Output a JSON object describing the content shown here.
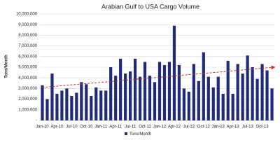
{
  "chart_data": {
    "type": "bar",
    "title": "Arabian Gulf to USA Cargo Volume",
    "y_label": "Tons/Month",
    "categories": [
      "Jan-10",
      null,
      null,
      "Apr-10",
      null,
      null,
      "Jul-10",
      null,
      null,
      "Oct-10",
      null,
      null,
      "Jan-11",
      null,
      null,
      "Apr-11",
      null,
      null,
      "Jul-11",
      null,
      null,
      "Oct-11",
      null,
      null,
      "Jan-12",
      null,
      null,
      "Apr-12",
      null,
      null,
      "Jul-12",
      null,
      null,
      "Oct-12",
      null,
      null,
      "Jan-13",
      null,
      null,
      "Apr-13",
      null,
      null,
      "Jul-13",
      null,
      null,
      "Oct-13",
      null,
      null
    ],
    "series": [
      {
        "name": "Tons/Month",
        "color": "#1f2a7a",
        "values": [
          3300000,
          2000000,
          4400000,
          2500000,
          2800000,
          3000000,
          2300000,
          2600000,
          3600000,
          3400000,
          2300000,
          3100000,
          2800000,
          2800000,
          5000000,
          4200000,
          5800000,
          4400000,
          4600000,
          5800000,
          4100000,
          5500000,
          4200000,
          3600000,
          5500000,
          5200000,
          5500000,
          8900000,
          5200000,
          3000000,
          2700000,
          5300000,
          3700000,
          6400000,
          4100000,
          3100000,
          4100000,
          2500000,
          5600000,
          2500000,
          5300000,
          4400000,
          6100000,
          5000000,
          3900000,
          5300000,
          4700000,
          3000000
        ]
      }
    ],
    "trend": {
      "start": 3100000,
      "end": 5000000,
      "color": "#c0392b"
    },
    "ylim": [
      0,
      10000000
    ],
    "yticks": [
      {
        "value": 0,
        "label": "-"
      },
      {
        "value": 1000000,
        "label": "1,000,000"
      },
      {
        "value": 2000000,
        "label": "2,000,000"
      },
      {
        "value": 3000000,
        "label": "3,000,000"
      },
      {
        "value": 4000000,
        "label": "4,000,000"
      },
      {
        "value": 5000000,
        "label": "5,000,000"
      },
      {
        "value": 6000000,
        "label": "6,000,000"
      },
      {
        "value": 7000000,
        "label": "7,000,000"
      },
      {
        "value": 8000000,
        "label": "8,000,000"
      },
      {
        "value": 9000000,
        "label": "9,000,000"
      },
      {
        "value": 10000000,
        "label": "10,000,000"
      }
    ],
    "grid": true
  }
}
